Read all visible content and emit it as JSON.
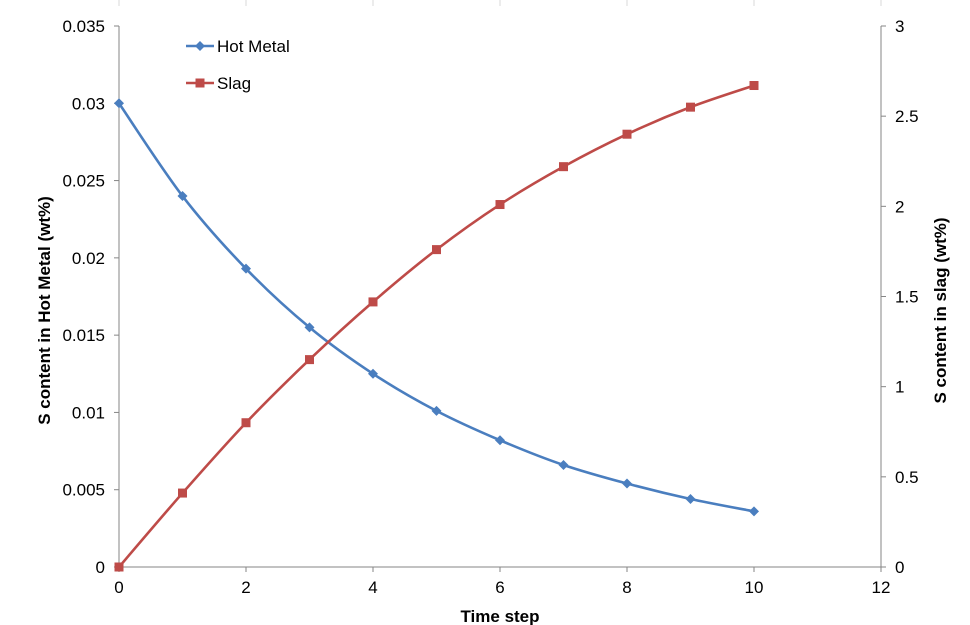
{
  "chart_data": {
    "type": "line",
    "xlabel": "Time step",
    "ylabel_left": "S content in Hot Metal (wt%)",
    "ylabel_right": "S content in slag (wt%)",
    "xlim": [
      0,
      12
    ],
    "ylim_left": [
      0,
      0.035
    ],
    "ylim_right": [
      0,
      3
    ],
    "x_ticks": [
      "0",
      "2",
      "4",
      "6",
      "8",
      "10",
      "12"
    ],
    "y_left_ticks": [
      "0",
      "0.005",
      "0.01",
      "0.015",
      "0.02",
      "0.025",
      "0.03",
      "0.035"
    ],
    "y_right_ticks": [
      "0",
      "0.5",
      "1",
      "1.5",
      "2",
      "2.5",
      "3"
    ],
    "grid": false,
    "legend_position": "top-left",
    "x": [
      0,
      1,
      2,
      3,
      4,
      5,
      6,
      7,
      8,
      9,
      10
    ],
    "series": [
      {
        "name": "Hot Metal",
        "axis": "left",
        "color": "#4a7ebf",
        "marker": "diamond",
        "values": [
          0.03,
          0.024,
          0.0193,
          0.0155,
          0.0125,
          0.0101,
          0.0082,
          0.0066,
          0.0054,
          0.0044,
          0.0036
        ]
      },
      {
        "name": "Slag",
        "axis": "right",
        "color": "#be4b48",
        "marker": "square",
        "values": [
          0.0,
          0.41,
          0.8,
          1.15,
          1.47,
          1.76,
          2.01,
          2.22,
          2.4,
          2.55,
          2.67
        ]
      }
    ]
  }
}
